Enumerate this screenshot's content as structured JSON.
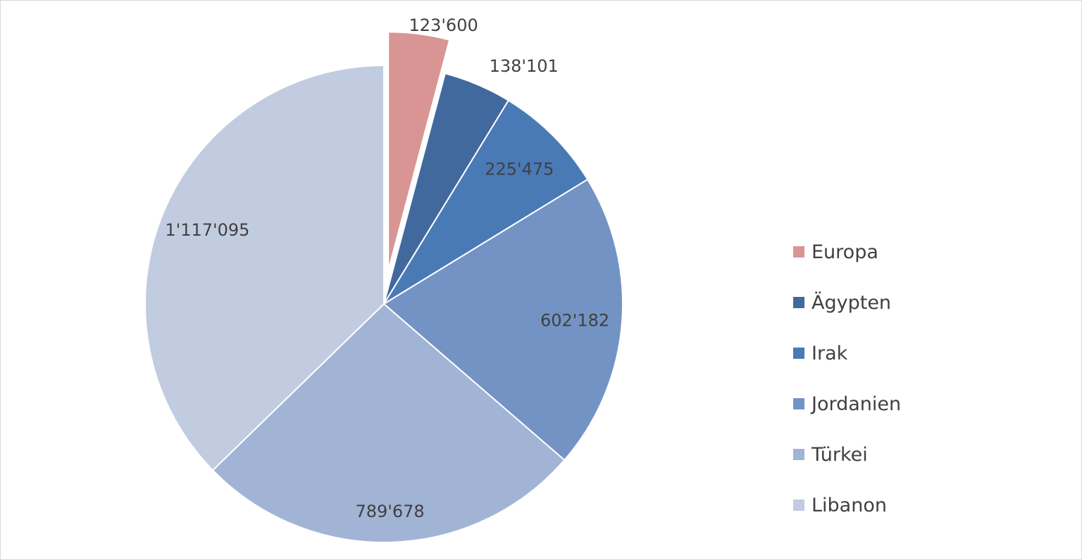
{
  "chart_data": {
    "type": "pie",
    "title": "",
    "start_angle_deg": 0,
    "direction": "clockwise",
    "exploded": [
      "Europa"
    ],
    "legend_position": "right",
    "slices": [
      {
        "name": "Europa",
        "value": 123600,
        "label": "123'600",
        "color": "#d99594"
      },
      {
        "name": "Ägypten",
        "value": 138101,
        "label": "138'101",
        "color": "#41699e"
      },
      {
        "name": "Irak",
        "value": 225475,
        "label": "225'475",
        "color": "#4a7ab5"
      },
      {
        "name": "Jordanien",
        "value": 602182,
        "label": "602'182",
        "color": "#7393c5"
      },
      {
        "name": "Türkei",
        "value": 789678,
        "label": "789'678",
        "color": "#a2b4d5"
      },
      {
        "name": "Libanon",
        "value": 1117095,
        "label": "1'117'095",
        "color": "#c1cce1"
      }
    ]
  }
}
